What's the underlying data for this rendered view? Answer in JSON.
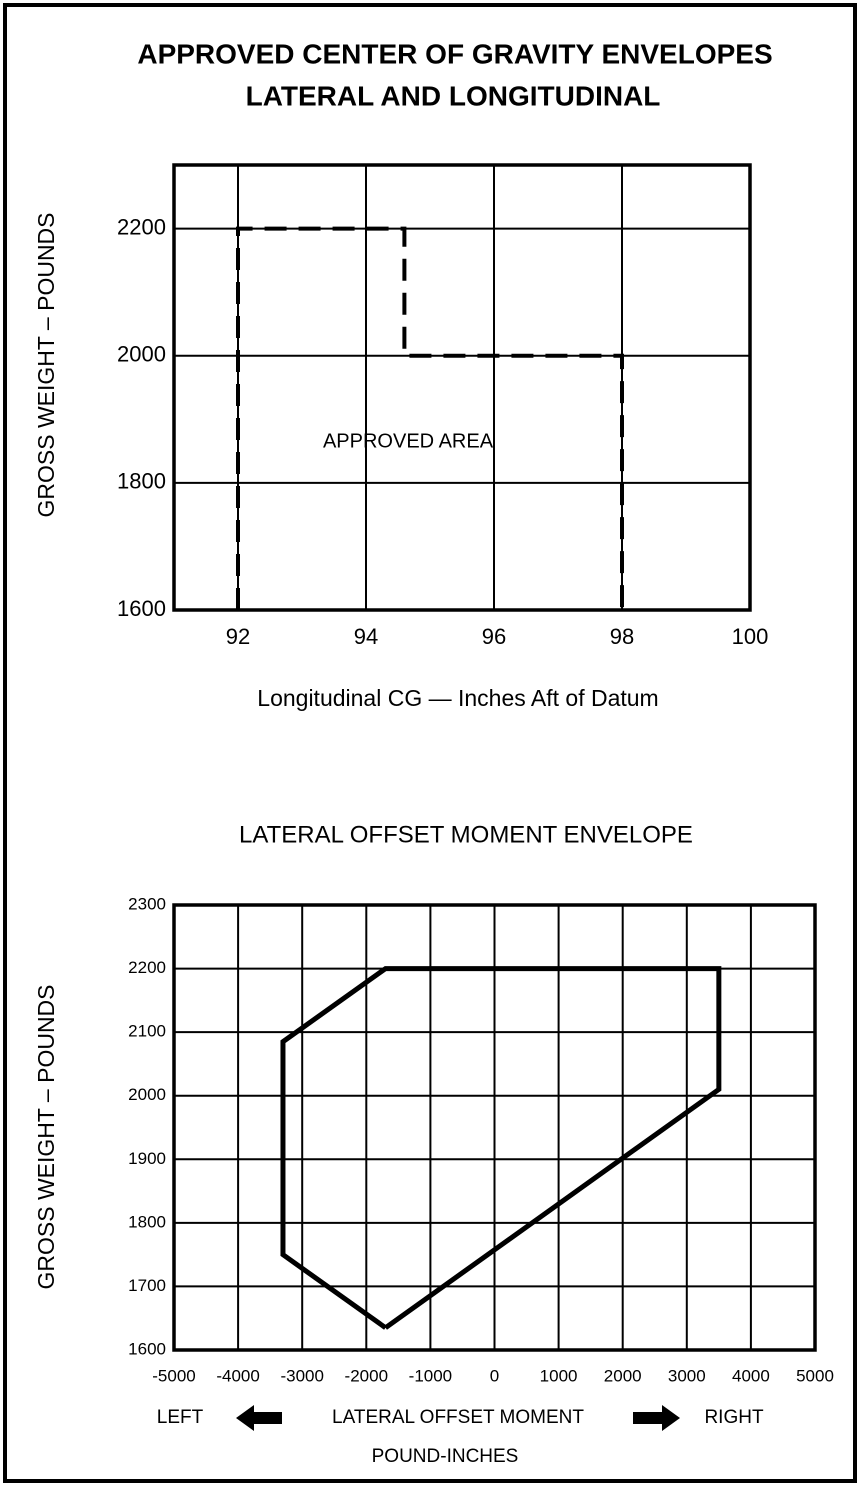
{
  "chart_data": [
    {
      "type": "line",
      "title": "APPROVED CENTER OF GRAVITY ENVELOPES",
      "subtitle": "LATERAL AND LONGITUDINAL",
      "xlabel": "Longitudinal CG — Inches Aft of Datum",
      "ylabel": "GROSS WEIGHT – POUNDS",
      "annotation": "APPROVED AREA",
      "xlim": [
        91,
        100
      ],
      "ylim": [
        1600,
        2300
      ],
      "xticks": [
        92,
        94,
        96,
        98,
        100
      ],
      "yticks": [
        1600,
        1800,
        2000,
        2200
      ],
      "grid": true,
      "line_style": "dashed",
      "series": [
        {
          "color": "#000000",
          "x": [
            92,
            92,
            94.6,
            94.6,
            98,
            98
          ],
          "values": [
            1600,
            2200,
            2200,
            2000,
            2000,
            1600
          ]
        }
      ]
    },
    {
      "type": "line",
      "title": "LATERAL OFFSET MOMENT ENVELOPE",
      "xlabel": "LATERAL OFFSET MOMENT",
      "xlabel_left": "LEFT",
      "xlabel_right": "RIGHT",
      "xunit": "POUND-INCHES",
      "ylabel": "GROSS WEIGHT – POUNDS",
      "xlim": [
        -5000,
        5000
      ],
      "ylim": [
        1600,
        2300
      ],
      "xticks": [
        -5000,
        -4000,
        -3000,
        -2000,
        -1000,
        0,
        1000,
        2000,
        3000,
        4000,
        5000
      ],
      "yticks": [
        1600,
        1700,
        1800,
        1900,
        2000,
        2100,
        2200,
        2300
      ],
      "grid": true,
      "line_style": "solid",
      "series": [
        {
          "color": "#000000",
          "x": [
            -1700,
            -3300,
            -3300,
            -1700,
            3500,
            3500,
            -1700
          ],
          "values": [
            1635,
            1750,
            2085,
            2200,
            2200,
            2010,
            1635
          ]
        }
      ]
    }
  ]
}
